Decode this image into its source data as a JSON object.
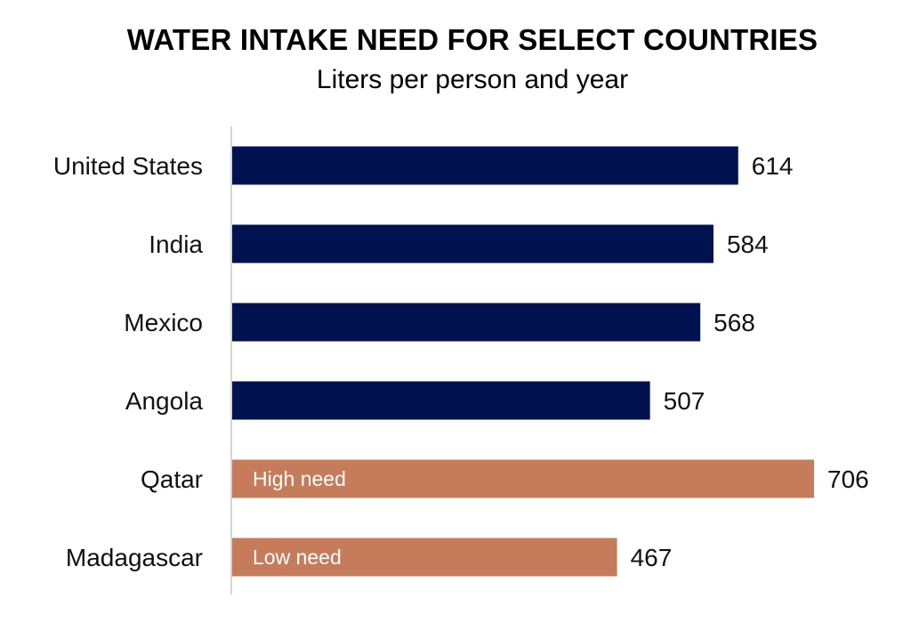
{
  "chart_data": {
    "type": "bar",
    "orientation": "horizontal",
    "title": "WATER INTAKE NEED FOR SELECT COUNTRIES",
    "subtitle": "Liters per person and year",
    "xlabel": "",
    "ylabel": "",
    "xlim": [
      0,
      706
    ],
    "grid": false,
    "categories": [
      "United States",
      "India",
      "Mexico",
      "Angola",
      "Qatar",
      "Madagascar"
    ],
    "values": [
      614,
      584,
      568,
      507,
      706,
      467
    ],
    "bar_colors": [
      "#001250",
      "#001250",
      "#001250",
      "#001250",
      "#c67c5a",
      "#c67c5a"
    ],
    "annotations": [
      "",
      "",
      "",
      "",
      "High need",
      "Low need"
    ],
    "axis_color": "#d4d4d4"
  }
}
